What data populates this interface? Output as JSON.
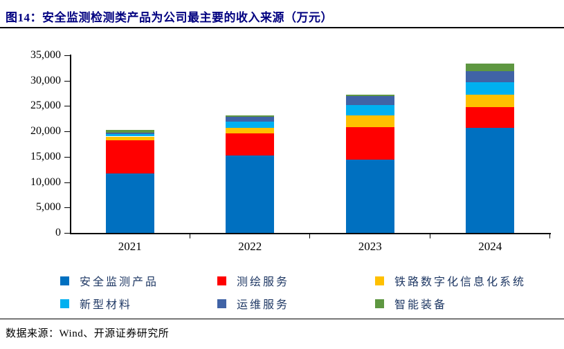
{
  "figure": {
    "title": "图14：安全监测检测类产品为公司最主要的收入来源（万元）",
    "source": "数据来源：Wind、开源证券研究所"
  },
  "chart_data": {
    "type": "bar",
    "stacked": true,
    "title": "安全监测检测类产品为公司最主要的收入来源",
    "unit": "万元",
    "categories": [
      "2021",
      "2022",
      "2023",
      "2024"
    ],
    "series": [
      {
        "name": "安全监测产品",
        "color": "#0070C0",
        "values": [
          11700,
          15200,
          14400,
          20700
        ]
      },
      {
        "name": "测绘服务",
        "color": "#FF0000",
        "values": [
          6500,
          4400,
          6500,
          4100
        ]
      },
      {
        "name": "铁路数字化信息化系统",
        "color": "#FFC000",
        "values": [
          800,
          1100,
          2300,
          2500
        ]
      },
      {
        "name": "新型材料",
        "color": "#00B0F0",
        "values": [
          500,
          1200,
          2000,
          2400
        ]
      },
      {
        "name": "运维服务",
        "color": "#4063A6",
        "values": [
          300,
          1000,
          1800,
          2200
        ]
      },
      {
        "name": "智能装备",
        "color": "#5E9741",
        "values": [
          500,
          200,
          200,
          1500
        ]
      }
    ],
    "totals": [
      20300,
      23100,
      27200,
      33400
    ],
    "ylim": [
      0,
      35000
    ],
    "ytick_interval": 5000,
    "ytick_labels": [
      "35,000",
      "30,000",
      "25,000",
      "20,000",
      "15,000",
      "10,000",
      "5,000",
      "0"
    ],
    "grid": false,
    "legend_position": "bottom"
  }
}
